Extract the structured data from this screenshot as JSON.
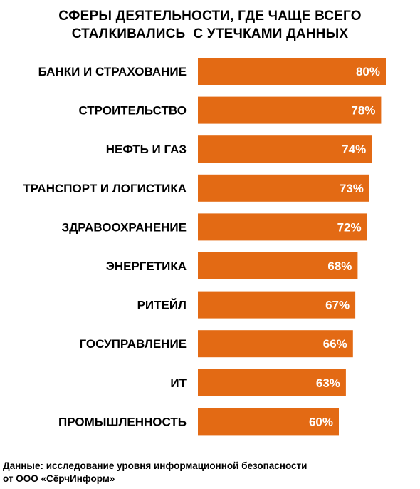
{
  "title_line1": "СФЕРЫ ДЕЯТЕЛЬНОСТИ, ГДЕ ЧАЩЕ ВСЕГО",
  "title_line2": "СТАЛКИВАЛИСЬ  С УТЕЧКАМИ ДАННЫХ",
  "source_line1": "Данные: исследование уровня информационной безопасности",
  "source_line2": "от ООО «СёрчИнформ»",
  "colors": {
    "bar": "#E36A14",
    "value_text": "#ffffff",
    "label_text": "#000000"
  },
  "chart_data": {
    "type": "bar",
    "orientation": "horizontal",
    "title": "СФЕРЫ ДЕЯТЕЛЬНОСТИ, ГДЕ ЧАЩЕ ВСЕГО СТАЛКИВАЛИСЬ  С УТЕЧКАМИ ДАННЫХ",
    "categories": [
      "БАНКИ И СТРАХОВАНИЕ",
      "СТРОИТЕЛЬСТВО",
      "НЕФТЬ И ГАЗ",
      "ТРАНСПОРТ И ЛОГИСТИКА",
      "ЗДРАВООХРАНЕНИЕ",
      "ЭНЕРГЕТИКА",
      "РИТЕЙЛ",
      "ГОСУПРАВЛЕНИЕ",
      "ИТ",
      "ПРОМЫШЛЕННОСТЬ"
    ],
    "values": [
      80,
      78,
      74,
      73,
      72,
      68,
      67,
      66,
      63,
      60
    ],
    "value_labels": [
      "80%",
      "78%",
      "74%",
      "73%",
      "72%",
      "68%",
      "67%",
      "66%",
      "63%",
      "60%"
    ],
    "unit": "%",
    "xlim": [
      0,
      80
    ],
    "grid": false,
    "legend": "none"
  }
}
